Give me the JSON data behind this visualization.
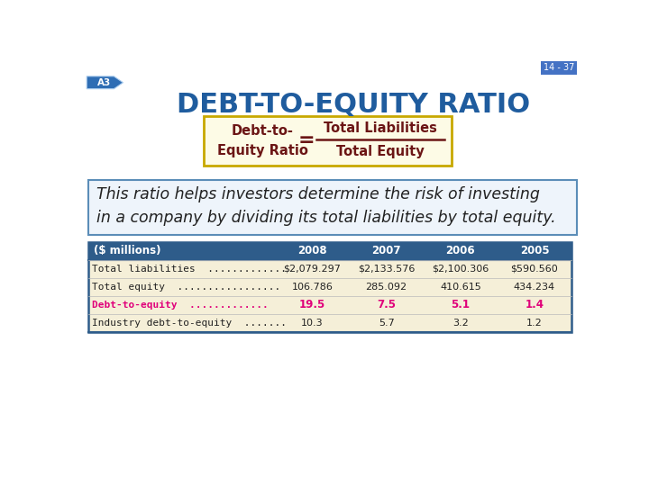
{
  "slide_number": "14 - 37",
  "title": "DEBT-TO-EQUITY RATIO",
  "title_color": "#1F5C9E",
  "background_color": "#FFFFFF",
  "formula_box_bg": "#FDFBE6",
  "formula_box_border": "#C8A800",
  "formula_left_text1": "Debt-to-",
  "formula_left_text2": "Equity Ratio",
  "formula_color": "#6B1515",
  "formula_numerator": "Total Liabilities",
  "formula_denominator": "Total Equity",
  "description_text1": "This ratio helps investors determine the risk of investing",
  "description_text2": "in a company by dividing its total liabilities by total equity.",
  "description_box_border": "#5B8DB8",
  "description_box_bg": "#EEF4FB",
  "description_text_color": "#222222",
  "badge_color": "#2E6DB4",
  "badge_text": "A3",
  "table_header_bg": "#2E5C8A",
  "table_header_text_color": "#FFFFFF",
  "table_columns": [
    "($ millions)",
    "2008",
    "2007",
    "2006",
    "2005"
  ],
  "table_rows": [
    [
      "Total liabilities                              .",
      "$2,079.297",
      "$2,133.576",
      "$2,100.306",
      "$590.560"
    ],
    [
      "Total equity                               .",
      "106.786",
      "285.092",
      "410.615",
      "434.234"
    ],
    [
      "Debt-to-equity                            .",
      "19.5",
      "7.5",
      "5.1",
      "1.4"
    ],
    [
      "Industry debt-to-equity                 .",
      "10.3",
      "5.7",
      "3.2",
      "1.2"
    ]
  ],
  "table_label_dots": [
    "Total liabilities  .............",
    "Total equity  .................",
    "Debt-to-equity  .............",
    "Industry debt-to-equity  ......."
  ],
  "debt_equity_row_index": 2,
  "debt_equity_color": "#E0007A",
  "table_bg": "#F5EFD8",
  "table_border_color": "#2E5C8A",
  "table_text_color": "#222222"
}
